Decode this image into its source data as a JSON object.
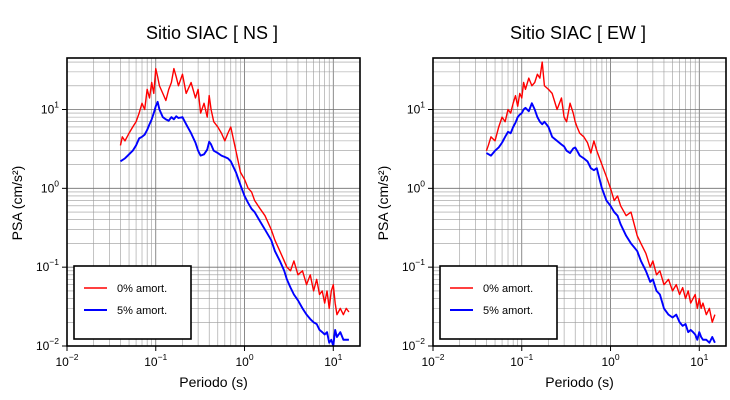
{
  "chart_data": [
    {
      "type": "line",
      "title": "Sitio SIAC [ NS ]",
      "xlabel": "Periodo (s)",
      "ylabel": "PSA (cm/s²)",
      "xscale": "log",
      "yscale": "log",
      "xlim": [
        0.01,
        20
      ],
      "ylim": [
        0.01,
        45
      ],
      "xticks": [
        0.01,
        0.1,
        1,
        10
      ],
      "xtick_labels": [
        "10",
        "10",
        "10",
        "10"
      ],
      "xtick_exponents": [
        "−2",
        "−1",
        "0",
        "1"
      ],
      "yticks": [
        0.01,
        0.1,
        1,
        10
      ],
      "ytick_labels": [
        "10",
        "10",
        "10",
        "10"
      ],
      "ytick_exponents": [
        "−2",
        "−1",
        "0",
        "1"
      ],
      "grid": true,
      "legend_position": "bottom-left",
      "series": [
        {
          "name": "0% amort.",
          "color": "#ff0000",
          "x": [
            0.04,
            0.042,
            0.045,
            0.05,
            0.055,
            0.06,
            0.065,
            0.07,
            0.075,
            0.08,
            0.085,
            0.09,
            0.095,
            0.1,
            0.105,
            0.11,
            0.12,
            0.13,
            0.14,
            0.15,
            0.16,
            0.17,
            0.18,
            0.2,
            0.22,
            0.25,
            0.28,
            0.3,
            0.32,
            0.35,
            0.38,
            0.4,
            0.42,
            0.45,
            0.5,
            0.55,
            0.6,
            0.65,
            0.7,
            0.8,
            0.9,
            1.0,
            1.1,
            1.2,
            1.3,
            1.5,
            1.7,
            2.0,
            2.2,
            2.5,
            2.8,
            3.0,
            3.3,
            3.6,
            4.0,
            4.5,
            5.0,
            5.5,
            6.0,
            6.5,
            7.0,
            7.5,
            8.0,
            8.5,
            9.0,
            9.5,
            10.0,
            10.5,
            11.0,
            12.0,
            13.0,
            14.0,
            15.0
          ],
          "values": [
            3.5,
            4.5,
            4.0,
            5.0,
            6.0,
            7.0,
            9.0,
            12.0,
            10.0,
            18.0,
            14.0,
            22.0,
            16.0,
            33.0,
            26.0,
            20.0,
            16.0,
            13.0,
            18.0,
            22.0,
            33.0,
            26.0,
            20.0,
            28.0,
            16.0,
            22.0,
            14.0,
            18.0,
            9.0,
            12.0,
            8.0,
            15.0,
            10.0,
            7.0,
            6.0,
            5.0,
            4.0,
            5.0,
            6.0,
            3.0,
            1.6,
            1.3,
            1.0,
            0.9,
            0.7,
            0.55,
            0.45,
            0.3,
            0.22,
            0.16,
            0.12,
            0.1,
            0.09,
            0.12,
            0.08,
            0.09,
            0.06,
            0.08,
            0.05,
            0.07,
            0.045,
            0.05,
            0.035,
            0.05,
            0.03,
            0.05,
            0.06,
            0.035,
            0.025,
            0.03,
            0.025,
            0.03,
            0.027
          ]
        },
        {
          "name": "5% amort.",
          "color": "#0000ff",
          "x": [
            0.04,
            0.045,
            0.05,
            0.055,
            0.06,
            0.065,
            0.07,
            0.075,
            0.08,
            0.085,
            0.09,
            0.095,
            0.1,
            0.105,
            0.11,
            0.12,
            0.13,
            0.14,
            0.15,
            0.16,
            0.17,
            0.18,
            0.2,
            0.22,
            0.25,
            0.28,
            0.3,
            0.32,
            0.35,
            0.38,
            0.4,
            0.42,
            0.45,
            0.5,
            0.55,
            0.6,
            0.65,
            0.7,
            0.8,
            0.9,
            1.0,
            1.1,
            1.2,
            1.3,
            1.5,
            1.7,
            2.0,
            2.2,
            2.5,
            2.8,
            3.0,
            3.3,
            3.6,
            4.0,
            4.5,
            5.0,
            5.5,
            6.0,
            6.5,
            7.0,
            7.5,
            8.0,
            8.5,
            9.0,
            9.5,
            10.0,
            10.5,
            11.0,
            12.0,
            13.0,
            14.0,
            15.0
          ],
          "values": [
            2.2,
            2.4,
            2.7,
            3.0,
            3.5,
            4.3,
            4.5,
            4.8,
            5.5,
            6.5,
            7.5,
            9.0,
            11.0,
            12.5,
            10.0,
            8.0,
            7.5,
            7.2,
            8.0,
            7.5,
            8.2,
            7.8,
            8.0,
            6.5,
            5.0,
            3.8,
            3.0,
            2.6,
            2.7,
            3.1,
            3.9,
            3.6,
            3.0,
            2.8,
            2.6,
            2.5,
            2.4,
            2.2,
            1.6,
            1.1,
            0.8,
            0.65,
            0.55,
            0.5,
            0.38,
            0.3,
            0.22,
            0.16,
            0.12,
            0.09,
            0.07,
            0.055,
            0.045,
            0.038,
            0.03,
            0.025,
            0.022,
            0.02,
            0.019,
            0.016,
            0.015,
            0.014,
            0.015,
            0.011,
            0.012,
            0.01,
            0.016,
            0.013,
            0.015,
            0.012,
            0.012,
            0.012
          ]
        }
      ]
    },
    {
      "type": "line",
      "title": "Sitio SIAC [ EW ]",
      "xlabel": "Periodo (s)",
      "ylabel": "PSA (cm/s²)",
      "xscale": "log",
      "yscale": "log",
      "xlim": [
        0.01,
        20
      ],
      "ylim": [
        0.01,
        45
      ],
      "xticks": [
        0.01,
        0.1,
        1,
        10
      ],
      "xtick_labels": [
        "10",
        "10",
        "10",
        "10"
      ],
      "xtick_exponents": [
        "−2",
        "−1",
        "0",
        "1"
      ],
      "yticks": [
        0.01,
        0.1,
        1,
        10
      ],
      "ytick_labels": [
        "10",
        "10",
        "10",
        "10"
      ],
      "ytick_exponents": [
        "−2",
        "−1",
        "0",
        "1"
      ],
      "grid": true,
      "legend_position": "bottom-left",
      "series": [
        {
          "name": "0% amort.",
          "color": "#ff0000",
          "x": [
            0.04,
            0.042,
            0.045,
            0.05,
            0.055,
            0.06,
            0.065,
            0.07,
            0.075,
            0.08,
            0.085,
            0.09,
            0.095,
            0.1,
            0.105,
            0.11,
            0.12,
            0.13,
            0.14,
            0.15,
            0.16,
            0.17,
            0.18,
            0.2,
            0.22,
            0.25,
            0.28,
            0.3,
            0.32,
            0.35,
            0.38,
            0.4,
            0.42,
            0.45,
            0.5,
            0.55,
            0.6,
            0.65,
            0.7,
            0.8,
            0.9,
            1.0,
            1.1,
            1.2,
            1.3,
            1.5,
            1.7,
            2.0,
            2.2,
            2.5,
            2.8,
            3.0,
            3.3,
            3.6,
            4.0,
            4.5,
            5.0,
            5.5,
            6.0,
            6.5,
            7.0,
            7.5,
            8.0,
            8.5,
            9.0,
            9.5,
            10.0,
            10.5,
            11.0,
            12.0,
            13.0,
            14.0,
            15.0
          ],
          "values": [
            3.0,
            3.5,
            4.5,
            4.0,
            6.0,
            8.0,
            7.0,
            10.0,
            9.0,
            12.0,
            15.0,
            11.0,
            16.0,
            14.0,
            22.0,
            18.0,
            25.0,
            20.0,
            22.0,
            28.0,
            25.0,
            40.0,
            20.0,
            18.0,
            16.0,
            10.0,
            14.0,
            8.0,
            7.0,
            12.0,
            9.0,
            7.0,
            6.0,
            5.0,
            4.5,
            3.8,
            2.8,
            4.0,
            3.0,
            2.0,
            1.4,
            1.0,
            0.7,
            0.8,
            0.6,
            0.45,
            0.5,
            0.25,
            0.2,
            0.15,
            0.1,
            0.12,
            0.08,
            0.09,
            0.06,
            0.07,
            0.05,
            0.06,
            0.045,
            0.055,
            0.04,
            0.05,
            0.035,
            0.04,
            0.045,
            0.03,
            0.04,
            0.03,
            0.035,
            0.025,
            0.03,
            0.02,
            0.025
          ]
        },
        {
          "name": "5% amort.",
          "color": "#0000ff",
          "x": [
            0.04,
            0.045,
            0.05,
            0.055,
            0.06,
            0.065,
            0.07,
            0.075,
            0.08,
            0.085,
            0.09,
            0.095,
            0.1,
            0.105,
            0.11,
            0.12,
            0.13,
            0.14,
            0.15,
            0.16,
            0.17,
            0.18,
            0.2,
            0.22,
            0.25,
            0.28,
            0.3,
            0.32,
            0.35,
            0.38,
            0.4,
            0.42,
            0.45,
            0.5,
            0.55,
            0.6,
            0.65,
            0.7,
            0.8,
            0.9,
            1.0,
            1.1,
            1.2,
            1.3,
            1.5,
            1.7,
            2.0,
            2.2,
            2.5,
            2.8,
            3.0,
            3.3,
            3.6,
            4.0,
            4.5,
            5.0,
            5.5,
            6.0,
            6.5,
            7.0,
            7.5,
            8.0,
            8.5,
            9.0,
            9.5,
            10.0,
            10.5,
            11.0,
            12.0,
            13.0,
            14.0,
            15.0
          ],
          "values": [
            2.8,
            2.6,
            3.0,
            3.3,
            3.8,
            4.5,
            5.2,
            5.0,
            6.0,
            6.8,
            8.0,
            8.6,
            9.0,
            10.0,
            10.5,
            9.5,
            12.0,
            10.0,
            8.0,
            7.0,
            6.5,
            7.0,
            6.0,
            4.5,
            4.0,
            3.6,
            3.4,
            3.0,
            2.8,
            3.2,
            3.3,
            3.0,
            2.6,
            2.4,
            2.2,
            1.8,
            1.7,
            1.8,
            1.0,
            0.7,
            0.6,
            0.5,
            0.45,
            0.35,
            0.25,
            0.2,
            0.16,
            0.12,
            0.09,
            0.065,
            0.07,
            0.05,
            0.045,
            0.03,
            0.025,
            0.023,
            0.025,
            0.02,
            0.018,
            0.019,
            0.015,
            0.016,
            0.015,
            0.014,
            0.012,
            0.015,
            0.013,
            0.012,
            0.012,
            0.011,
            0.013,
            0.011
          ]
        }
      ]
    }
  ]
}
